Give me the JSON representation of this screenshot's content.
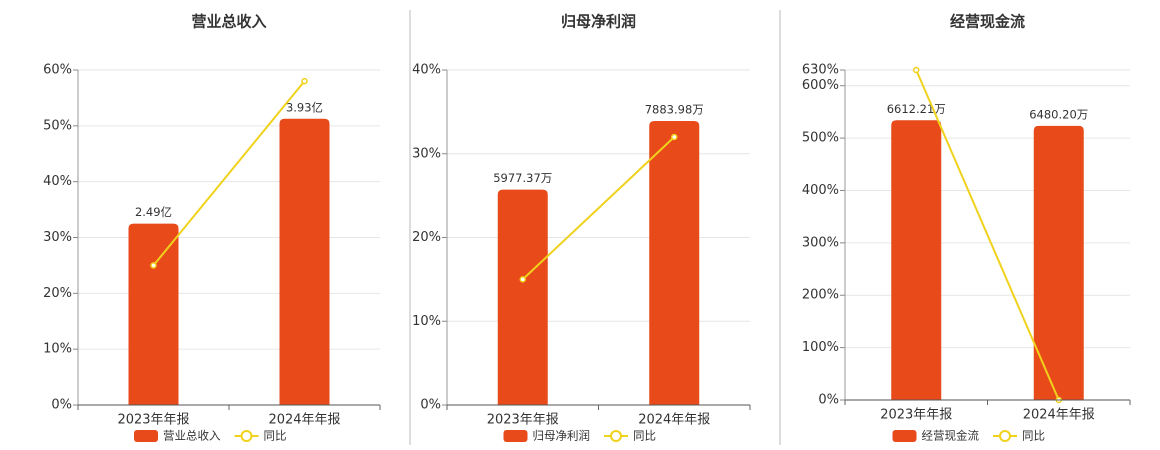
{
  "chart_data": [
    {
      "type": "bar",
      "title": "营业总收入",
      "categories": [
        "2023年年报",
        "2024年年报"
      ],
      "series": [
        {
          "name": "营业总收入",
          "color": "#e84a1a",
          "axis": "y2",
          "values": [
            2.49,
            3.93
          ],
          "value_labels": [
            "2.49亿",
            "3.93亿"
          ]
        },
        {
          "name": "同比",
          "color": "#f0d21c",
          "values": [
            25,
            58
          ]
        }
      ],
      "ylim": [
        0,
        60
      ],
      "yticks": [
        {
          "value": 0,
          "label": "0%"
        },
        {
          "value": 10,
          "label": "10%"
        },
        {
          "value": 20,
          "label": "20%"
        },
        {
          "value": 30,
          "label": "30%"
        },
        {
          "value": 40,
          "label": "40%"
        },
        {
          "value": 50,
          "label": "50%"
        },
        {
          "value": 60,
          "label": "60%"
        }
      ],
      "y2lim": [
        0,
        4.6
      ],
      "grid": true
    },
    {
      "type": "bar",
      "title": "归母净利润",
      "categories": [
        "2023年年报",
        "2024年年报"
      ],
      "series": [
        {
          "name": "归母净利润",
          "color": "#e84a1a",
          "axis": "y2",
          "values": [
            5977.37,
            7883.98
          ],
          "value_labels": [
            "5977.37万",
            "7883.98万"
          ]
        },
        {
          "name": "同比",
          "color": "#f0d21c",
          "values": [
            15,
            32
          ]
        }
      ],
      "ylim": [
        0,
        40
      ],
      "yticks": [
        {
          "value": 0,
          "label": "0%"
        },
        {
          "value": 10,
          "label": "10%"
        },
        {
          "value": 20,
          "label": "20%"
        },
        {
          "value": 30,
          "label": "30%"
        },
        {
          "value": 40,
          "label": "40%"
        }
      ],
      "y2lim": [
        0,
        9300
      ],
      "grid": true
    },
    {
      "type": "bar",
      "title": "经营现金流",
      "categories": [
        "2023年年报",
        "2024年年报"
      ],
      "series": [
        {
          "name": "经营现金流",
          "color": "#e84a1a",
          "axis": "y2",
          "values": [
            6612.21,
            6480.2
          ],
          "value_labels": [
            "6612.21万",
            "6480.20万"
          ]
        },
        {
          "name": "同比",
          "color": "#f0d21c",
          "values": [
            630,
            0
          ]
        }
      ],
      "ylim": [
        0,
        630
      ],
      "yticks": [
        {
          "value": 0,
          "label": "0%"
        },
        {
          "value": 100,
          "label": "100%"
        },
        {
          "value": 200,
          "label": "200%"
        },
        {
          "value": 300,
          "label": "300%"
        },
        {
          "value": 400,
          "label": "400%"
        },
        {
          "value": 500,
          "label": "500%"
        },
        {
          "value": 600,
          "label": "600%"
        },
        {
          "value": 630,
          "label": "630%"
        }
      ],
      "y2lim": [
        0,
        7800
      ],
      "grid": true
    }
  ]
}
